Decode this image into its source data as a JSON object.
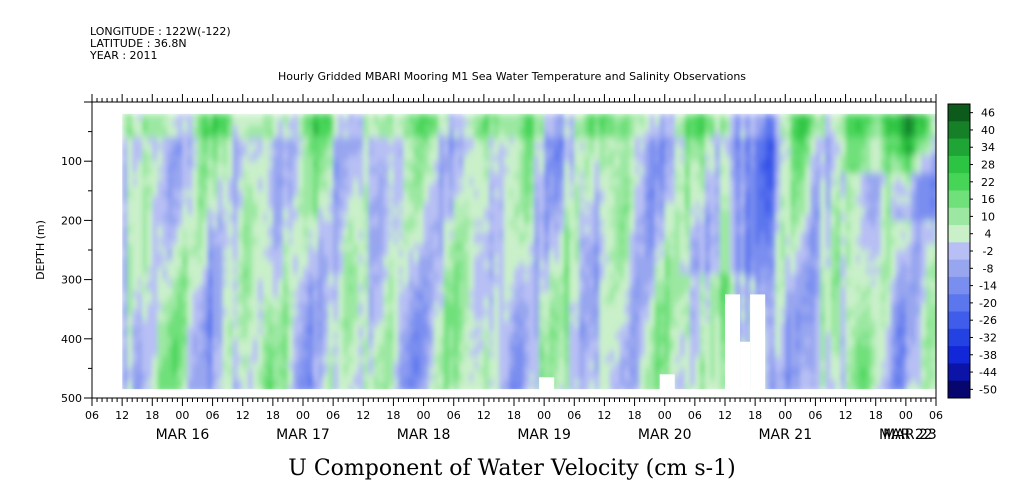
{
  "header": {
    "longitude": "LONGITUDE : 122W(-122)",
    "latitude": "LATITUDE : 36.8N",
    "year": "YEAR : 2011"
  },
  "chart_data": {
    "type": "heatmap",
    "title": "Hourly Gridded MBARI Mooring M1 Sea Water Temperature and Salinity Observations",
    "variable_label": "U Component of Water Velocity (cm s-1)",
    "ylabel": "DEPTH (m)",
    "ylim": [
      500,
      0
    ],
    "y_inverted": true,
    "y_ticks": [
      100,
      200,
      300,
      400,
      500
    ],
    "x_range_hours": [
      0,
      168
    ],
    "x_start": "MAR 15 2011 06:00",
    "hour_ticks": [
      "06",
      "12",
      "18",
      "00",
      "06",
      "12",
      "18",
      "00",
      "06",
      "12",
      "18",
      "00",
      "06",
      "12",
      "18",
      "00",
      "06",
      "12",
      "18",
      "00",
      "06",
      "12",
      "18",
      "00",
      "06",
      "12",
      "18",
      "00",
      "06"
    ],
    "day_labels": [
      "MAR 16",
      "MAR 17",
      "MAR 18",
      "MAR 19",
      "MAR 20",
      "MAR 21",
      "MAR 22",
      "MAR 23"
    ],
    "data_depth_range_m": [
      20,
      485
    ],
    "data_time_range": [
      "MAR 15 12:00",
      "MAR 23 06:00"
    ],
    "colorbar": {
      "levels": [
        -50,
        -44,
        -38,
        -32,
        -26,
        -20,
        -14,
        -8,
        -2,
        4,
        10,
        16,
        22,
        28,
        34,
        40,
        46
      ],
      "tick_labels": [
        "46",
        "40",
        "34",
        "28",
        "22",
        "16",
        "10",
        "4",
        "-2",
        "-8",
        "-14",
        "-20",
        "-26",
        "-32",
        "-38",
        "-44",
        "-50"
      ],
      "colors_low_to_high": [
        "#07066e",
        "#0c14a8",
        "#1228d8",
        "#2442e2",
        "#3f5cea",
        "#5c76ee",
        "#7a8ef0",
        "#98a6f0",
        "#b7bff4",
        "#c9f0c9",
        "#9ce8a2",
        "#6fe07a",
        "#47d558",
        "#2ec443",
        "#1fa535",
        "#168029",
        "#0c5a1c"
      ]
    },
    "missing_blocks": [
      {
        "t_start": "MAR 18 23:00",
        "t_end": "MAR 19 02:00",
        "depth_top": 465
      },
      {
        "t_start": "MAR 19 23:00",
        "t_end": "MAR 20 02:00",
        "depth_top": 460
      },
      {
        "t_start": "MAR 20 12:00",
        "t_end": "MAR 20 15:00",
        "depth_top": 325
      },
      {
        "t_start": "MAR 20 15:00",
        "t_end": "MAR 20 17:00",
        "depth_top": 405
      },
      {
        "t_start": "MAR 20 17:00",
        "t_end": "MAR 20 20:00",
        "depth_top": 325
      }
    ]
  }
}
